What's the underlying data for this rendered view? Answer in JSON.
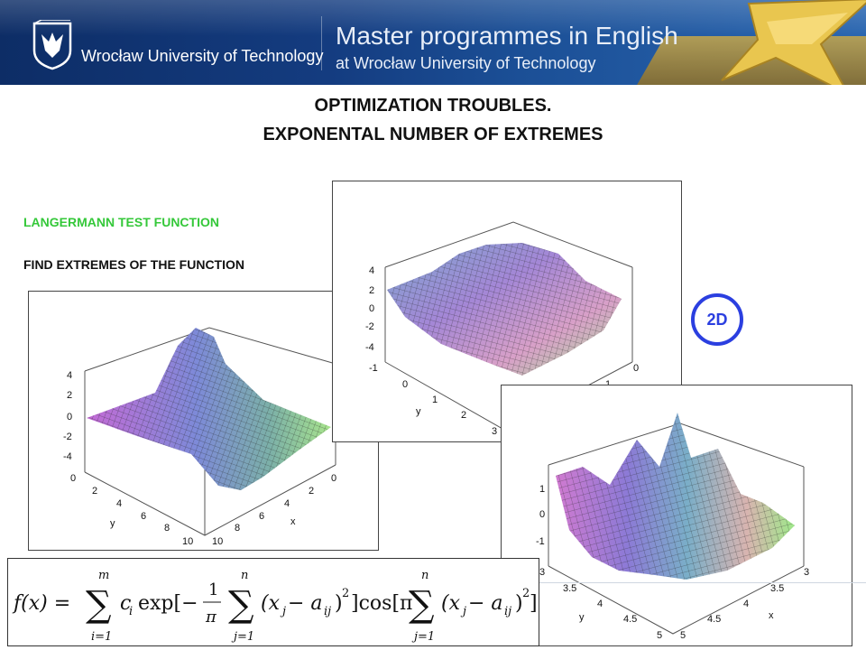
{
  "header": {
    "university": "Wrocław University of Technology",
    "programme_line1": "Master programmes in English",
    "programme_line2": "at Wrocław University of Technology"
  },
  "title": {
    "line1": "OPTIMIZATION TROUBLES.",
    "line2": "EXPONENTAL NUMBER OF EXTREMES"
  },
  "labels": {
    "function_name": "LANGERMANN TEST FUNCTION",
    "task": "FIND EXTREMES OF THE FUNCTION"
  },
  "badge": "2D",
  "plots": {
    "plot1": {
      "z_ticks": [
        "4",
        "2",
        "0",
        "-2",
        "-4"
      ],
      "y_ticks": [
        "0",
        "2",
        "4",
        "6",
        "8",
        "10"
      ],
      "x_ticks": [
        "0",
        "2",
        "4",
        "6",
        "8",
        "10"
      ],
      "y_label": "y",
      "x_label": "x"
    },
    "plot2": {
      "z_ticks": [
        "4",
        "2",
        "0",
        "-2",
        "-4"
      ],
      "y_ticks": [
        "-1",
        "0",
        "1",
        "2",
        "3"
      ],
      "x_ticks": [
        "0",
        "1"
      ],
      "y_label": "y"
    },
    "plot3": {
      "z_ticks": [
        "1",
        "0",
        "-1"
      ],
      "y_ticks": [
        "3",
        "3.5",
        "4",
        "4.5",
        "5"
      ],
      "x_ticks": [
        "3",
        "3.5",
        "4",
        "4.5",
        "5"
      ],
      "y_label": "y",
      "x_label": "x"
    }
  },
  "formula": {
    "lhs": "f(x) = ",
    "sum1_top": "m",
    "sum1_bottom": "i=1",
    "term1": "c",
    "term1_sub": "i",
    "exp_part": "exp[−",
    "frac_num": "1",
    "frac_den": "π",
    "sum2_top": "n",
    "sum2_bottom": "j=1",
    "inner1": "(x",
    "inner1_sub_j": "j",
    "minus": " − a",
    "inner1_sub_ij": "ij",
    "inner1_close": ")",
    "sq": "2",
    "cos_part": "]cos[π",
    "sum3_top": "n",
    "sum3_bottom": "j=1",
    "inner2": "(x",
    "inner2_sub_j": "j",
    "minus2": " − a",
    "inner2_sub_ij": "ij",
    "inner2_close": ")",
    "sq2": "2",
    "end": "]"
  }
}
